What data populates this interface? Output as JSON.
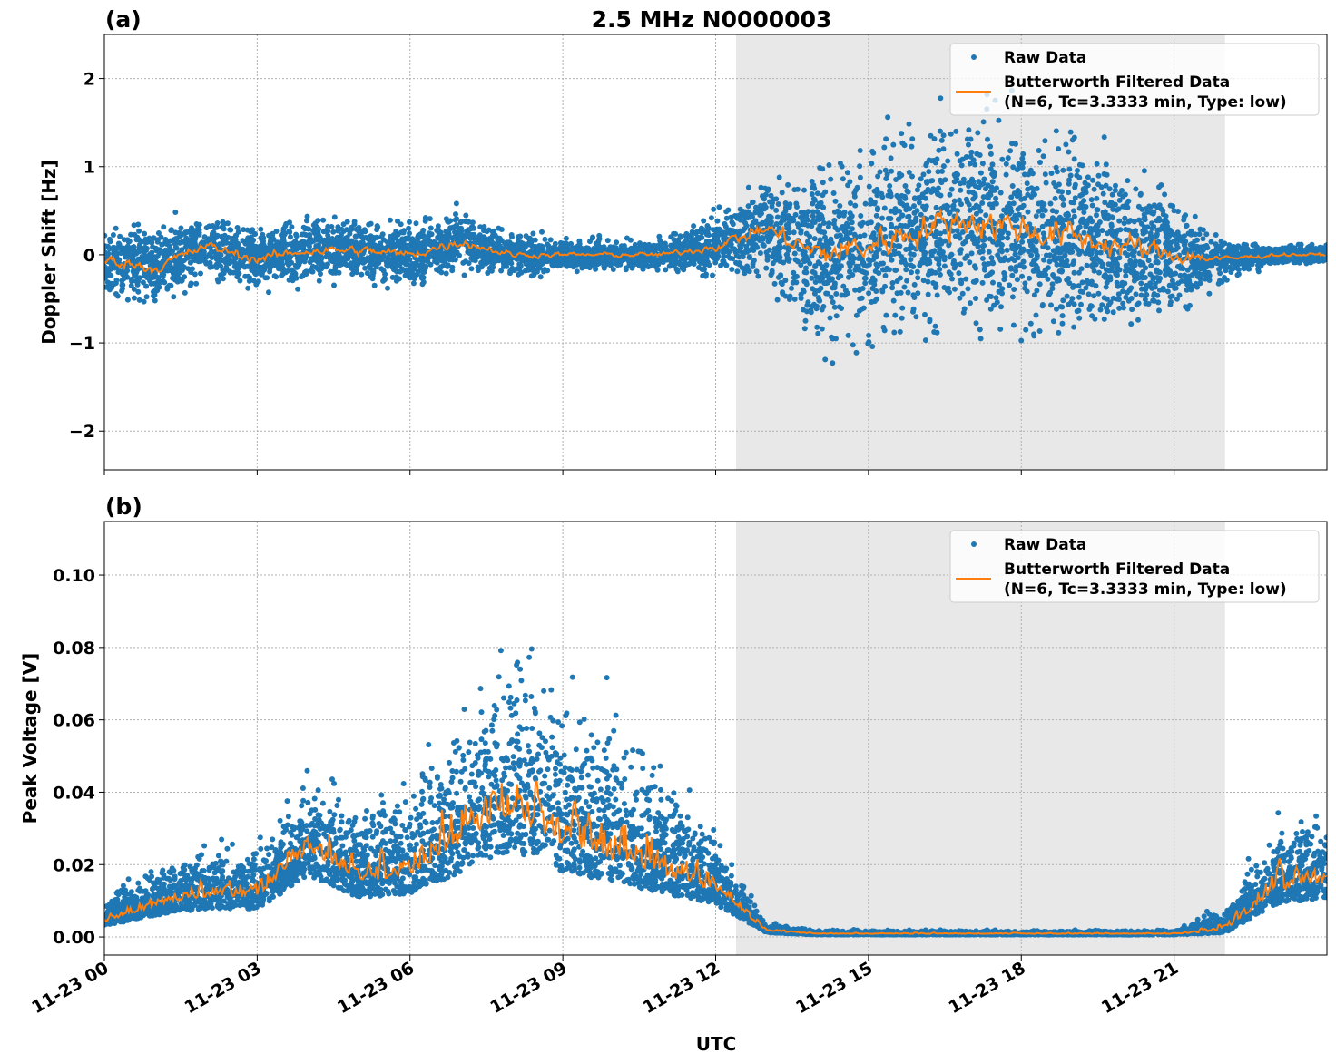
{
  "figure": {
    "title": "2.5 MHz N0000003",
    "xlabel": "UTC"
  },
  "colors": {
    "raw": "#1f77b4",
    "filtered": "#ff7f0e",
    "shade": "#e8e8e8",
    "grid": "#b0b0b0"
  },
  "chart_data": [
    {
      "type": "scatter",
      "panel_label": "(a)",
      "ylabel": "Doppler Shift [Hz]",
      "xlim_hours": [
        0,
        24
      ],
      "ylim": [
        -2.44,
        2.5
      ],
      "yticks": [
        -2,
        -1,
        0,
        1,
        2
      ],
      "ytick_labels": [
        "−2",
        "−1",
        "0",
        "1",
        "2"
      ],
      "xticks_hours": [
        0,
        3,
        6,
        9,
        12,
        15,
        18,
        21
      ],
      "xtick_labels": [
        "11-23 00",
        "11-23 03",
        "11-23 06",
        "11-23 09",
        "11-23 12",
        "11-23 15",
        "11-23 18",
        "11-23 21"
      ],
      "grid": true,
      "shaded_interval_hours": [
        12.4,
        22.0
      ],
      "legend": {
        "placement": "top-right",
        "entries": [
          "Raw Data",
          "Butterworth Filtered Data",
          "(N=6, Tc=3.3333 min, Type: low)"
        ]
      },
      "series": [
        {
          "name": "Raw Data",
          "kind": "points",
          "hourly_center": [
            -0.05,
            -0.15,
            0.1,
            -0.05,
            0.05,
            0.05,
            0.0,
            0.15,
            0.0,
            0.0,
            0.0,
            0.0,
            0.1,
            0.3,
            0.0,
            0.1,
            0.3,
            0.4,
            0.3,
            0.2,
            0.1,
            0.0,
            -0.05,
            0.0,
            0.0
          ],
          "hourly_spread": [
            0.3,
            0.4,
            0.3,
            0.3,
            0.3,
            0.3,
            0.3,
            0.3,
            0.2,
            0.15,
            0.15,
            0.15,
            0.3,
            0.5,
            0.9,
            1.0,
            1.0,
            1.0,
            1.0,
            1.0,
            0.8,
            0.6,
            0.2,
            0.1,
            0.1
          ]
        },
        {
          "name": "Butterworth Filtered Data",
          "kind": "line"
        }
      ]
    },
    {
      "type": "scatter",
      "panel_label": "(b)",
      "ylabel": "Peak Voltage [V]",
      "xlim_hours": [
        0,
        24
      ],
      "ylim": [
        -0.005,
        0.1148
      ],
      "yticks": [
        0,
        0.02,
        0.04,
        0.06,
        0.08,
        0.1
      ],
      "ytick_labels": [
        "0.00",
        "0.02",
        "0.04",
        "0.06",
        "0.08",
        "0.10"
      ],
      "xticks_hours": [
        0,
        3,
        6,
        9,
        12,
        15,
        18,
        21
      ],
      "xtick_labels": [
        "11-23 00",
        "11-23 03",
        "11-23 06",
        "11-23 09",
        "11-23 12",
        "11-23 15",
        "11-23 18",
        "11-23 21"
      ],
      "grid": true,
      "shaded_interval_hours": [
        12.4,
        22.0
      ],
      "legend": {
        "placement": "top-right",
        "entries": [
          "Raw Data",
          "Butterworth Filtered Data",
          "(N=6, Tc=3.3333 min, Type: low)"
        ]
      },
      "series": [
        {
          "name": "Raw Data",
          "kind": "points",
          "hourly_center": [
            0.005,
            0.01,
            0.013,
            0.013,
            0.028,
            0.018,
            0.02,
            0.03,
            0.04,
            0.03,
            0.025,
            0.02,
            0.015,
            0.002,
            0.001,
            0.001,
            0.001,
            0.001,
            0.001,
            0.001,
            0.001,
            0.001,
            0.002,
            0.015,
            0.018
          ],
          "hourly_spread": [
            0.005,
            0.01,
            0.012,
            0.012,
            0.02,
            0.018,
            0.02,
            0.03,
            0.04,
            0.035,
            0.03,
            0.025,
            0.012,
            0.002,
            0.0008,
            0.0008,
            0.0008,
            0.0008,
            0.0008,
            0.0008,
            0.0008,
            0.0008,
            0.005,
            0.015,
            0.018
          ]
        },
        {
          "name": "Butterworth Filtered Data",
          "kind": "line"
        }
      ]
    }
  ]
}
